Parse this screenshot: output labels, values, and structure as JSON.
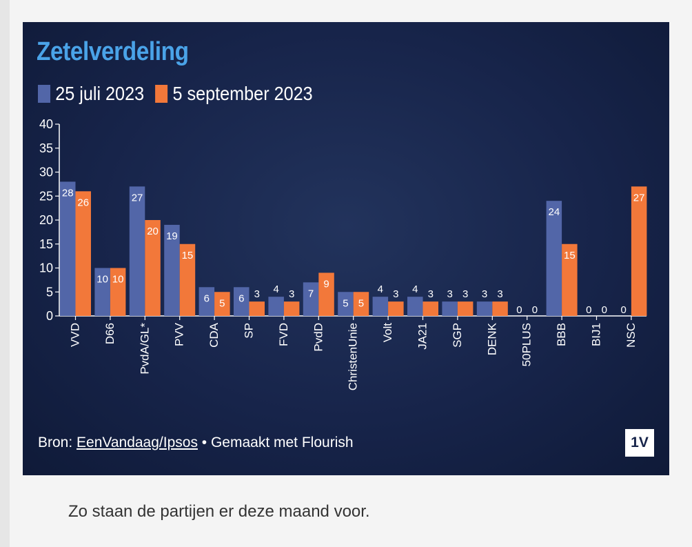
{
  "chart_data": {
    "type": "bar",
    "title": "Zetelverdeling",
    "categories": [
      "VVD",
      "D66",
      "PvdA/GL*",
      "PVV",
      "CDA",
      "SP",
      "FVD",
      "PvdD",
      "ChristenUnie",
      "Volt",
      "JA21",
      "SGP",
      "DENK",
      "50PLUS",
      "BBB",
      "BIJ1",
      "NSC"
    ],
    "series": [
      {
        "name": "25 juli 2023",
        "color": "#5266a8",
        "values": [
          28,
          10,
          27,
          19,
          6,
          6,
          4,
          7,
          5,
          4,
          4,
          3,
          3,
          0,
          24,
          0,
          0
        ]
      },
      {
        "name": "5 september 2023",
        "color": "#f2783a",
        "values": [
          26,
          10,
          20,
          15,
          5,
          3,
          3,
          9,
          5,
          3,
          3,
          3,
          3,
          0,
          15,
          0,
          27
        ]
      }
    ],
    "ylim": [
      0,
      40
    ],
    "yticks": [
      0,
      5,
      10,
      15,
      20,
      25,
      30,
      35,
      40
    ],
    "legend_position": "top-left",
    "grid": false
  },
  "footer": {
    "source_prefix": "Bron: ",
    "source_link": "EenVandaag/Ipsos",
    "suffix": " • Gemaakt met Flourish"
  },
  "logo": {
    "text": "1V"
  },
  "caption": "Zo staan de partijen er deze maand voor."
}
